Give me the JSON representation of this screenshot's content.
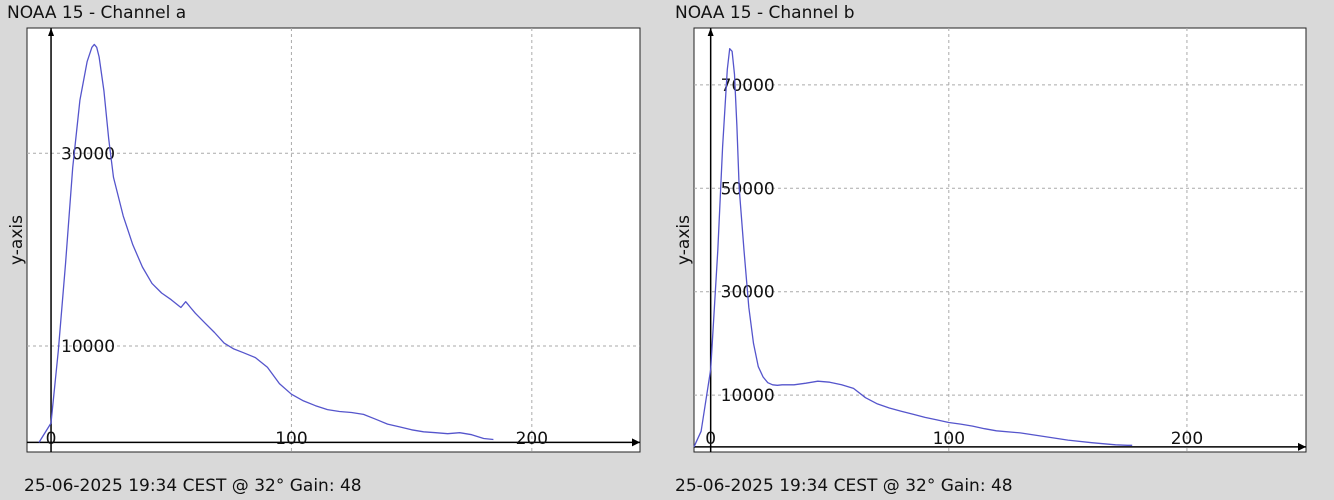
{
  "chart_data": [
    {
      "type": "line",
      "title": "NOAA 15 - Channel a",
      "footer": "25-06-2025 19:34 CEST @ 32° Gain: 48",
      "xlabel": "",
      "ylabel": "y-axis",
      "xlim": [
        -10,
        245
      ],
      "ylim": [
        -1000,
        43000
      ],
      "x_ticks": [
        0,
        100,
        200
      ],
      "y_ticks": [
        10000,
        30000
      ],
      "grid": true,
      "series": [
        {
          "color": "#5555cc",
          "x": [
            -5,
            0,
            3,
            6,
            9,
            12,
            15,
            17,
            18,
            19,
            20,
            22,
            24,
            26,
            30,
            34,
            38,
            42,
            46,
            50,
            54,
            56,
            57,
            58,
            60,
            64,
            68,
            72,
            76,
            80,
            85,
            90,
            95,
            100,
            105,
            110,
            115,
            120,
            125,
            130,
            135,
            140,
            145,
            150,
            155,
            160,
            165,
            170,
            175,
            180,
            184
          ],
          "y": [
            0,
            2000,
            9500,
            18500,
            28500,
            35500,
            39500,
            41000,
            41300,
            41000,
            40000,
            36500,
            31500,
            27500,
            23500,
            20500,
            18200,
            16500,
            15500,
            14800,
            14000,
            14600,
            14300,
            14000,
            13400,
            12400,
            11400,
            10300,
            9700,
            9300,
            8800,
            7800,
            6100,
            5000,
            4300,
            3800,
            3400,
            3200,
            3100,
            2900,
            2400,
            1900,
            1600,
            1300,
            1100,
            1000,
            900,
            1000,
            800,
            400,
            300
          ]
        }
      ]
    },
    {
      "type": "line",
      "title": "NOAA 15 - Channel b",
      "footer": "25-06-2025 19:34 CEST @ 32° Gain: 48",
      "xlabel": "",
      "ylabel": "y-axis",
      "xlim": [
        -7,
        250
      ],
      "ylim": [
        -1000,
        81000
      ],
      "x_ticks": [
        0,
        100,
        200
      ],
      "y_ticks": [
        10000,
        30000,
        50000,
        70000
      ],
      "grid": true,
      "series": [
        {
          "color": "#5555cc",
          "x": [
            -7,
            -4,
            0,
            3,
            5,
            7,
            8,
            9,
            10,
            11,
            12,
            14,
            16,
            18,
            20,
            22,
            24,
            26,
            28,
            30,
            35,
            40,
            45,
            50,
            55,
            60,
            65,
            70,
            75,
            80,
            85,
            90,
            95,
            100,
            105,
            110,
            115,
            120,
            130,
            140,
            150,
            160,
            170,
            175,
            177
          ],
          "y": [
            0,
            3000,
            15000,
            38000,
            58000,
            73000,
            77000,
            76500,
            72000,
            62000,
            50000,
            38000,
            27000,
            20000,
            15500,
            13500,
            12400,
            12000,
            11900,
            12000,
            12000,
            12300,
            12700,
            12500,
            12000,
            11300,
            9500,
            8300,
            7500,
            6900,
            6300,
            5700,
            5200,
            4700,
            4400,
            4000,
            3500,
            3100,
            2700,
            2000,
            1300,
            800,
            400,
            300,
            300
          ]
        }
      ]
    }
  ]
}
